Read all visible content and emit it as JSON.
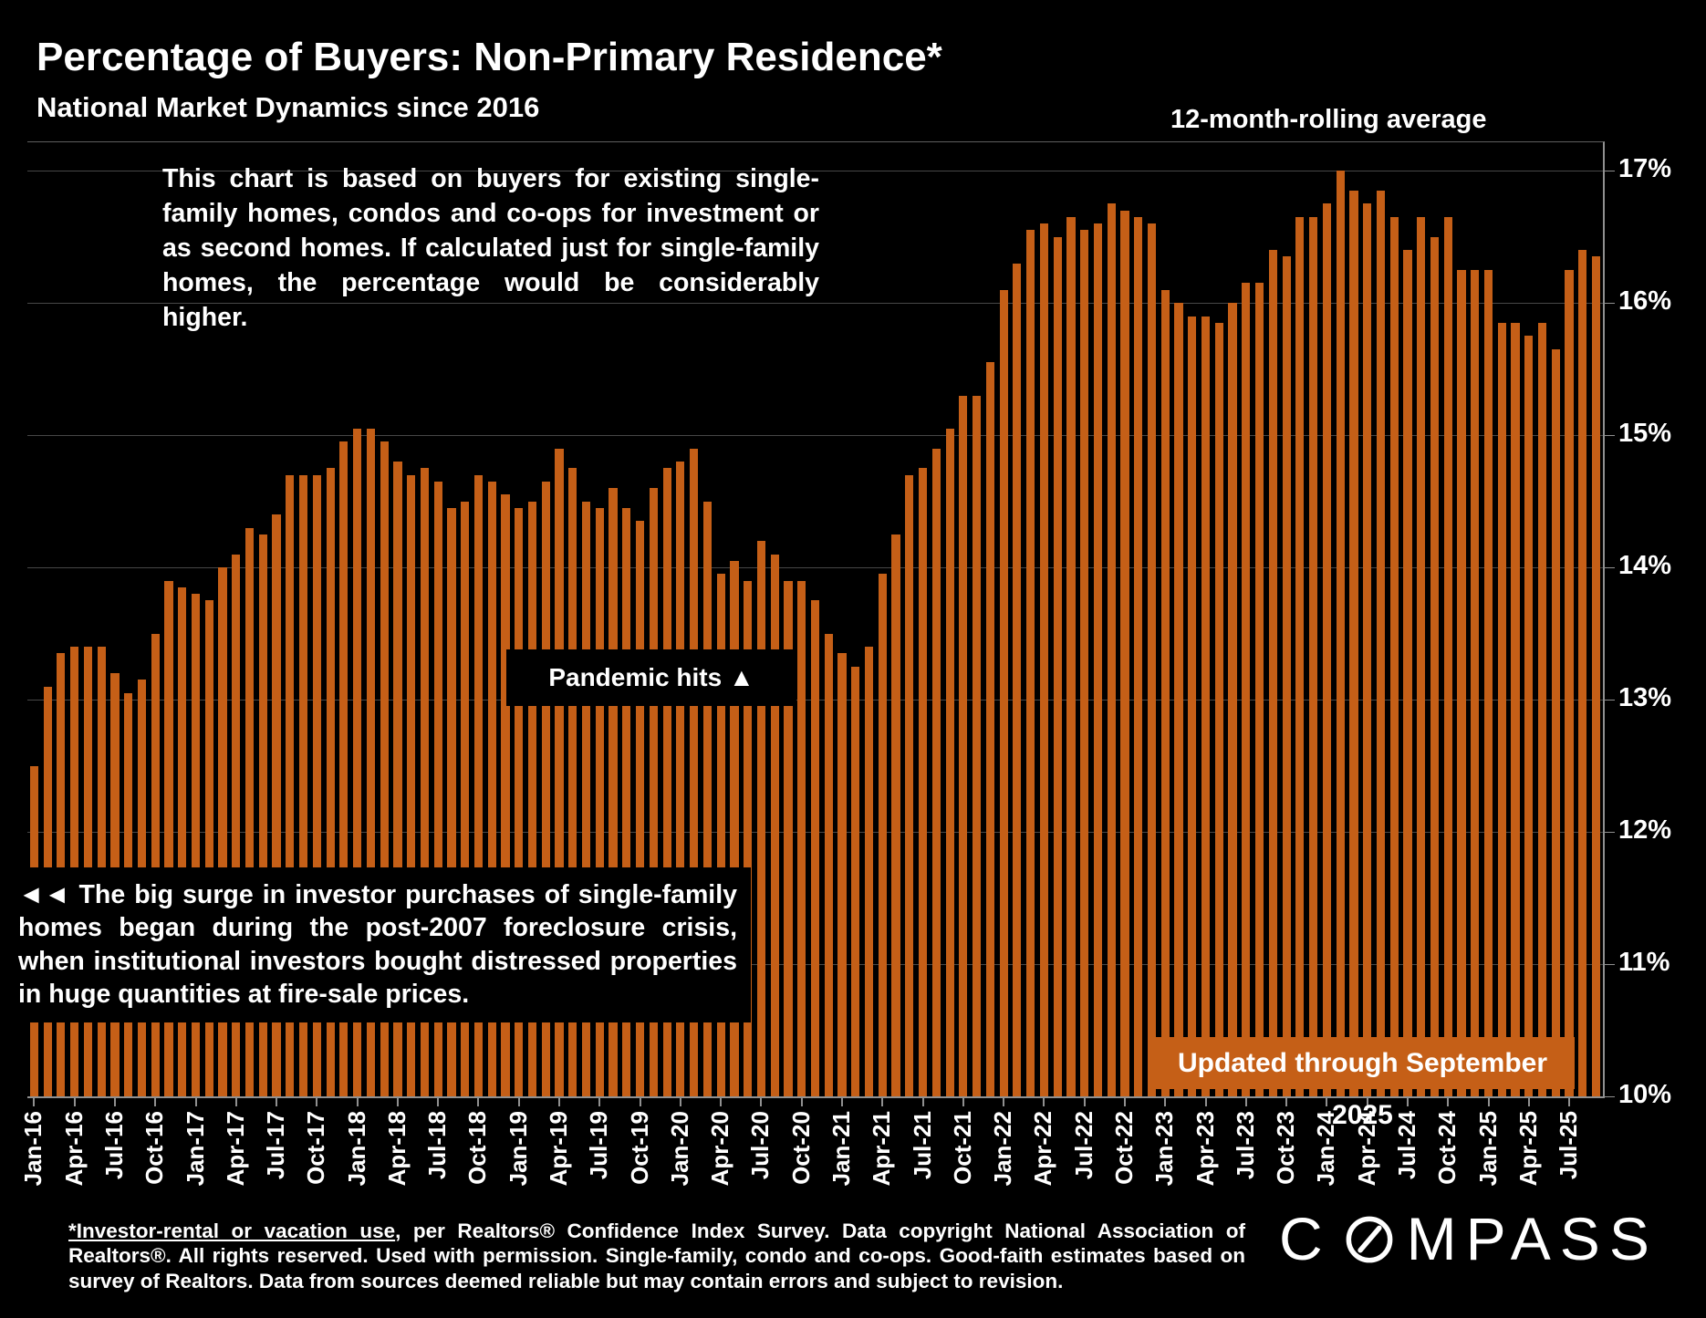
{
  "header": {
    "title": "Percentage of Buyers: Non-Primary Residence*",
    "subtitle": "National Market Dynamics since 2016",
    "legend": "12-month-rolling average"
  },
  "annotations": {
    "chart_basis": "This chart is based on buyers for existing single-family homes, condos and co-ops for investment or as second homes. If calculated just for single-family homes, the percentage would be considerably higher.",
    "pandemic": "Pandemic hits ▲",
    "surge": "◄◄ The big surge in investor purchases of single-family homes began during the post-2007 foreclosure crisis, when institutional investors bought distressed properties in huge quantities at fire-sale prices.",
    "updated": "Updated through September 2025"
  },
  "footnote": {
    "underlined": "*Investor-rental or vacation use",
    "rest": ", per Realtors® Confidence Index Survey. Data copyright National Association of Realtors®. All rights reserved. Used with permission. Single-family, condo and co-ops. Good-faith estimates based on survey of Realtors. Data from sources deemed reliable but may contain errors and subject to revision."
  },
  "logo": {
    "c": "C",
    "mpass": "MPASS"
  },
  "colors": {
    "background": "#000000",
    "bar": "#C55F17",
    "accent_box": "#C55F17",
    "gridline": "#474747",
    "axis": "#909090",
    "text": "#FFFFFF"
  },
  "chart_data": {
    "type": "bar",
    "title": "Percentage of Buyers: Non-Primary Residence*",
    "subtitle": "National Market Dynamics since 2016",
    "series_label": "12-month-rolling average, % of buyers purchasing non-primary residence",
    "xlabel": "",
    "ylabel": "",
    "ylim": [
      10,
      17
    ],
    "grid": true,
    "legend_position": "top-right",
    "y_ticks": [
      "17%",
      "16%",
      "15%",
      "14%",
      "13%",
      "12%",
      "11%",
      "10%"
    ],
    "x_tick_labels": [
      "Jan-16",
      "Apr-16",
      "Jul-16",
      "Oct-16",
      "Jan-17",
      "Apr-17",
      "Jul-17",
      "Oct-17",
      "Jan-18",
      "Apr-18",
      "Jul-18",
      "Oct-18",
      "Jan-19",
      "Apr-19",
      "Jul-19",
      "Oct-19",
      "Jan-20",
      "Apr-20",
      "Jul-20",
      "Oct-20",
      "Jan-21",
      "Apr-21",
      "Jul-21",
      "Oct-21",
      "Jan-22",
      "Apr-22",
      "Jul-22",
      "Oct-22",
      "Jan-23",
      "Apr-23",
      "Jul-23",
      "Oct-23",
      "Jan-24",
      "Apr-24",
      "Jul-24",
      "Oct-24",
      "Jan-25",
      "Apr-25",
      "Jul-25"
    ],
    "months": [
      "Jan-16",
      "Feb-16",
      "Mar-16",
      "Apr-16",
      "May-16",
      "Jun-16",
      "Jul-16",
      "Aug-16",
      "Sep-16",
      "Oct-16",
      "Nov-16",
      "Dec-16",
      "Jan-17",
      "Feb-17",
      "Mar-17",
      "Apr-17",
      "May-17",
      "Jun-17",
      "Jul-17",
      "Aug-17",
      "Sep-17",
      "Oct-17",
      "Nov-17",
      "Dec-17",
      "Jan-18",
      "Feb-18",
      "Mar-18",
      "Apr-18",
      "May-18",
      "Jun-18",
      "Jul-18",
      "Aug-18",
      "Sep-18",
      "Oct-18",
      "Nov-18",
      "Dec-18",
      "Jan-19",
      "Feb-19",
      "Mar-19",
      "Apr-19",
      "May-19",
      "Jun-19",
      "Jul-19",
      "Aug-19",
      "Sep-19",
      "Oct-19",
      "Nov-19",
      "Dec-19",
      "Jan-20",
      "Feb-20",
      "Mar-20",
      "Apr-20",
      "May-20",
      "Jun-20",
      "Jul-20",
      "Aug-20",
      "Sep-20",
      "Oct-20",
      "Nov-20",
      "Dec-20",
      "Jan-21",
      "Feb-21",
      "Mar-21",
      "Apr-21",
      "May-21",
      "Jun-21",
      "Jul-21",
      "Aug-21",
      "Sep-21",
      "Oct-21",
      "Nov-21",
      "Dec-21",
      "Jan-22",
      "Feb-22",
      "Mar-22",
      "Apr-22",
      "May-22",
      "Jun-22",
      "Jul-22",
      "Aug-22",
      "Sep-22",
      "Oct-22",
      "Nov-22",
      "Dec-22",
      "Jan-23",
      "Feb-23",
      "Mar-23",
      "Apr-23",
      "May-23",
      "Jun-23",
      "Jul-23",
      "Aug-23",
      "Sep-23",
      "Oct-23",
      "Nov-23",
      "Dec-23",
      "Jan-24",
      "Feb-24",
      "Mar-24",
      "Apr-24",
      "May-24",
      "Jun-24",
      "Jul-24",
      "Aug-24",
      "Sep-24",
      "Oct-24",
      "Nov-24",
      "Dec-24",
      "Jan-25",
      "Feb-25",
      "Mar-25",
      "Apr-25",
      "May-25",
      "Jun-25",
      "Jul-25",
      "Aug-25",
      "Sep-25"
    ],
    "values": [
      12.5,
      13.1,
      13.35,
      13.4,
      13.4,
      13.4,
      13.2,
      13.05,
      13.15,
      13.5,
      13.9,
      13.85,
      13.8,
      13.75,
      14.0,
      14.1,
      14.3,
      14.25,
      14.4,
      14.7,
      14.7,
      14.7,
      14.75,
      14.95,
      15.05,
      15.05,
      14.95,
      14.8,
      14.7,
      14.75,
      14.65,
      14.45,
      14.5,
      14.7,
      14.65,
      14.55,
      14.45,
      14.5,
      14.65,
      14.9,
      14.75,
      14.5,
      14.45,
      14.6,
      14.45,
      14.35,
      14.6,
      14.75,
      14.8,
      14.9,
      14.5,
      13.95,
      14.05,
      13.9,
      14.2,
      14.1,
      13.9,
      13.9,
      13.75,
      13.5,
      13.35,
      13.25,
      13.4,
      13.95,
      14.25,
      14.7,
      14.75,
      14.9,
      15.05,
      15.3,
      15.3,
      15.55,
      16.1,
      16.3,
      16.55,
      16.6,
      16.5,
      16.65,
      16.55,
      16.6,
      16.75,
      16.7,
      16.65,
      16.6,
      16.1,
      16.0,
      15.9,
      15.9,
      15.85,
      16.0,
      16.15,
      16.15,
      16.4,
      16.35,
      16.65,
      16.65,
      16.75,
      17.0,
      16.85,
      16.75,
      16.85,
      16.65,
      16.4,
      16.65,
      16.5,
      16.65,
      16.25,
      16.25,
      16.25,
      15.85,
      15.85,
      15.75,
      15.85,
      15.65,
      16.25,
      16.4,
      16.35
    ]
  }
}
